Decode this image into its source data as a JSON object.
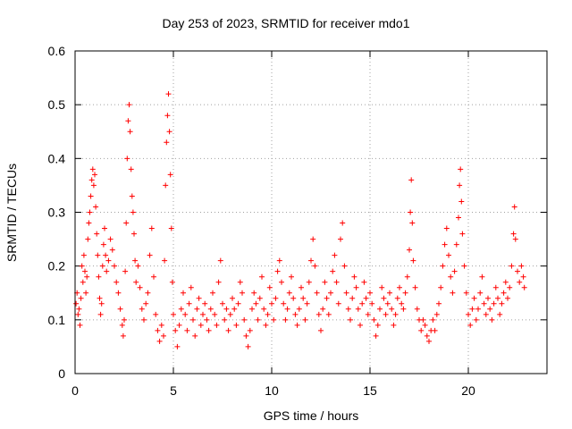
{
  "chart_data": {
    "type": "scatter",
    "title": "Day 253 of 2023, SRMTID for receiver mdo1",
    "xlabel": "GPS time / hours",
    "ylabel": "SRMTID / TECUs",
    "xlim": [
      0,
      24
    ],
    "ylim": [
      0,
      0.6
    ],
    "xticks": [
      0,
      5,
      10,
      15,
      20
    ],
    "xtick_labels": [
      "0",
      "5",
      "10",
      "15",
      "20"
    ],
    "yticks": [
      0,
      0.1,
      0.2,
      0.3,
      0.4,
      0.5,
      0.6
    ],
    "ytick_labels": [
      "0",
      "0.1",
      "0.2",
      "0.3",
      "0.4",
      "0.5",
      "0.6"
    ],
    "grid": true,
    "marker": "+",
    "color": "#ff0000",
    "series": [
      {
        "name": "SRMTID",
        "points": [
          [
            0.05,
            0.13
          ],
          [
            0.1,
            0.15
          ],
          [
            0.15,
            0.11
          ],
          [
            0.2,
            0.12
          ],
          [
            0.25,
            0.09
          ],
          [
            0.3,
            0.14
          ],
          [
            0.35,
            0.2
          ],
          [
            0.4,
            0.17
          ],
          [
            0.45,
            0.22
          ],
          [
            0.5,
            0.19
          ],
          [
            0.55,
            0.15
          ],
          [
            0.6,
            0.18
          ],
          [
            0.65,
            0.25
          ],
          [
            0.7,
            0.28
          ],
          [
            0.75,
            0.3
          ],
          [
            0.8,
            0.33
          ],
          [
            0.85,
            0.36
          ],
          [
            0.9,
            0.38
          ],
          [
            0.95,
            0.35
          ],
          [
            1.0,
            0.37
          ],
          [
            1.05,
            0.31
          ],
          [
            1.1,
            0.26
          ],
          [
            1.15,
            0.22
          ],
          [
            1.2,
            0.18
          ],
          [
            1.25,
            0.14
          ],
          [
            1.3,
            0.11
          ],
          [
            1.35,
            0.13
          ],
          [
            1.4,
            0.2
          ],
          [
            1.45,
            0.24
          ],
          [
            1.5,
            0.27
          ],
          [
            1.55,
            0.22
          ],
          [
            1.6,
            0.19
          ],
          [
            1.7,
            0.21
          ],
          [
            1.8,
            0.25
          ],
          [
            1.9,
            0.23
          ],
          [
            2.0,
            0.2
          ],
          [
            2.1,
            0.17
          ],
          [
            2.2,
            0.15
          ],
          [
            2.3,
            0.12
          ],
          [
            2.4,
            0.09
          ],
          [
            2.45,
            0.07
          ],
          [
            2.5,
            0.1
          ],
          [
            2.55,
            0.19
          ],
          [
            2.6,
            0.28
          ],
          [
            2.65,
            0.4
          ],
          [
            2.7,
            0.47
          ],
          [
            2.75,
            0.5
          ],
          [
            2.8,
            0.45
          ],
          [
            2.85,
            0.38
          ],
          [
            2.9,
            0.33
          ],
          [
            2.95,
            0.3
          ],
          [
            3.0,
            0.26
          ],
          [
            3.05,
            0.21
          ],
          [
            3.1,
            0.17
          ],
          [
            3.2,
            0.2
          ],
          [
            3.3,
            0.16
          ],
          [
            3.4,
            0.12
          ],
          [
            3.5,
            0.1
          ],
          [
            3.6,
            0.13
          ],
          [
            3.7,
            0.15
          ],
          [
            3.8,
            0.22
          ],
          [
            3.9,
            0.27
          ],
          [
            4.0,
            0.18
          ],
          [
            4.1,
            0.11
          ],
          [
            4.2,
            0.08
          ],
          [
            4.3,
            0.06
          ],
          [
            4.4,
            0.09
          ],
          [
            4.5,
            0.07
          ],
          [
            4.55,
            0.21
          ],
          [
            4.6,
            0.35
          ],
          [
            4.65,
            0.43
          ],
          [
            4.7,
            0.48
          ],
          [
            4.75,
            0.52
          ],
          [
            4.8,
            0.45
          ],
          [
            4.85,
            0.37
          ],
          [
            4.9,
            0.27
          ],
          [
            4.95,
            0.17
          ],
          [
            5.0,
            0.11
          ],
          [
            5.1,
            0.08
          ],
          [
            5.2,
            0.05
          ],
          [
            5.3,
            0.09
          ],
          [
            5.4,
            0.12
          ],
          [
            5.5,
            0.15
          ],
          [
            5.6,
            0.11
          ],
          [
            5.7,
            0.08
          ],
          [
            5.8,
            0.13
          ],
          [
            5.9,
            0.16
          ],
          [
            6.0,
            0.1
          ],
          [
            6.1,
            0.07
          ],
          [
            6.2,
            0.12
          ],
          [
            6.3,
            0.14
          ],
          [
            6.4,
            0.09
          ],
          [
            6.5,
            0.11
          ],
          [
            6.6,
            0.13
          ],
          [
            6.7,
            0.1
          ],
          [
            6.8,
            0.08
          ],
          [
            6.9,
            0.12
          ],
          [
            7.0,
            0.15
          ],
          [
            7.1,
            0.11
          ],
          [
            7.2,
            0.09
          ],
          [
            7.3,
            0.17
          ],
          [
            7.4,
            0.21
          ],
          [
            7.5,
            0.13
          ],
          [
            7.6,
            0.1
          ],
          [
            7.7,
            0.12
          ],
          [
            7.8,
            0.08
          ],
          [
            7.9,
            0.11
          ],
          [
            8.0,
            0.14
          ],
          [
            8.1,
            0.12
          ],
          [
            8.2,
            0.09
          ],
          [
            8.3,
            0.13
          ],
          [
            8.4,
            0.17
          ],
          [
            8.5,
            0.15
          ],
          [
            8.6,
            0.1
          ],
          [
            8.7,
            0.07
          ],
          [
            8.8,
            0.05
          ],
          [
            8.9,
            0.08
          ],
          [
            9.0,
            0.12
          ],
          [
            9.1,
            0.15
          ],
          [
            9.2,
            0.13
          ],
          [
            9.3,
            0.1
          ],
          [
            9.4,
            0.14
          ],
          [
            9.5,
            0.18
          ],
          [
            9.6,
            0.12
          ],
          [
            9.7,
            0.09
          ],
          [
            9.8,
            0.11
          ],
          [
            9.9,
            0.16
          ],
          [
            10.0,
            0.13
          ],
          [
            10.1,
            0.1
          ],
          [
            10.2,
            0.14
          ],
          [
            10.3,
            0.19
          ],
          [
            10.4,
            0.21
          ],
          [
            10.5,
            0.17
          ],
          [
            10.6,
            0.13
          ],
          [
            10.7,
            0.1
          ],
          [
            10.8,
            0.12
          ],
          [
            10.9,
            0.15
          ],
          [
            11.0,
            0.18
          ],
          [
            11.1,
            0.14
          ],
          [
            11.2,
            0.11
          ],
          [
            11.3,
            0.09
          ],
          [
            11.4,
            0.12
          ],
          [
            11.5,
            0.16
          ],
          [
            11.6,
            0.14
          ],
          [
            11.7,
            0.1
          ],
          [
            11.8,
            0.13
          ],
          [
            11.9,
            0.17
          ],
          [
            12.0,
            0.21
          ],
          [
            12.1,
            0.25
          ],
          [
            12.2,
            0.2
          ],
          [
            12.3,
            0.15
          ],
          [
            12.4,
            0.11
          ],
          [
            12.5,
            0.08
          ],
          [
            12.6,
            0.12
          ],
          [
            12.7,
            0.17
          ],
          [
            12.8,
            0.14
          ],
          [
            12.9,
            0.11
          ],
          [
            13.0,
            0.15
          ],
          [
            13.1,
            0.19
          ],
          [
            13.2,
            0.22
          ],
          [
            13.3,
            0.17
          ],
          [
            13.4,
            0.13
          ],
          [
            13.5,
            0.25
          ],
          [
            13.6,
            0.28
          ],
          [
            13.7,
            0.2
          ],
          [
            13.8,
            0.15
          ],
          [
            13.9,
            0.12
          ],
          [
            14.0,
            0.1
          ],
          [
            14.1,
            0.14
          ],
          [
            14.2,
            0.18
          ],
          [
            14.3,
            0.16
          ],
          [
            14.4,
            0.12
          ],
          [
            14.5,
            0.09
          ],
          [
            14.6,
            0.13
          ],
          [
            14.7,
            0.17
          ],
          [
            14.8,
            0.14
          ],
          [
            14.9,
            0.11
          ],
          [
            15.0,
            0.15
          ],
          [
            15.1,
            0.13
          ],
          [
            15.2,
            0.1
          ],
          [
            15.3,
            0.07
          ],
          [
            15.4,
            0.09
          ],
          [
            15.5,
            0.12
          ],
          [
            15.6,
            0.16
          ],
          [
            15.7,
            0.14
          ],
          [
            15.8,
            0.11
          ],
          [
            15.9,
            0.13
          ],
          [
            16.0,
            0.15
          ],
          [
            16.1,
            0.12
          ],
          [
            16.2,
            0.09
          ],
          [
            16.3,
            0.11
          ],
          [
            16.4,
            0.14
          ],
          [
            16.5,
            0.16
          ],
          [
            16.6,
            0.13
          ],
          [
            16.7,
            0.12
          ],
          [
            16.8,
            0.15
          ],
          [
            16.9,
            0.18
          ],
          [
            17.0,
            0.23
          ],
          [
            17.05,
            0.3
          ],
          [
            17.1,
            0.36
          ],
          [
            17.15,
            0.28
          ],
          [
            17.2,
            0.21
          ],
          [
            17.3,
            0.16
          ],
          [
            17.4,
            0.12
          ],
          [
            17.5,
            0.1
          ],
          [
            17.6,
            0.08
          ],
          [
            17.7,
            0.1
          ],
          [
            17.8,
            0.09
          ],
          [
            17.9,
            0.07
          ],
          [
            18.0,
            0.06
          ],
          [
            18.1,
            0.08
          ],
          [
            18.2,
            0.1
          ],
          [
            18.3,
            0.08
          ],
          [
            18.4,
            0.11
          ],
          [
            18.5,
            0.13
          ],
          [
            18.6,
            0.16
          ],
          [
            18.7,
            0.2
          ],
          [
            18.8,
            0.24
          ],
          [
            18.9,
            0.27
          ],
          [
            19.0,
            0.22
          ],
          [
            19.1,
            0.18
          ],
          [
            19.2,
            0.15
          ],
          [
            19.3,
            0.19
          ],
          [
            19.4,
            0.24
          ],
          [
            19.5,
            0.29
          ],
          [
            19.55,
            0.35
          ],
          [
            19.6,
            0.38
          ],
          [
            19.65,
            0.32
          ],
          [
            19.7,
            0.26
          ],
          [
            19.8,
            0.2
          ],
          [
            19.9,
            0.15
          ],
          [
            20.0,
            0.11
          ],
          [
            20.1,
            0.09
          ],
          [
            20.2,
            0.12
          ],
          [
            20.3,
            0.14
          ],
          [
            20.4,
            0.1
          ],
          [
            20.5,
            0.12
          ],
          [
            20.6,
            0.15
          ],
          [
            20.7,
            0.18
          ],
          [
            20.8,
            0.13
          ],
          [
            20.9,
            0.11
          ],
          [
            21.0,
            0.14
          ],
          [
            21.1,
            0.12
          ],
          [
            21.2,
            0.1
          ],
          [
            21.3,
            0.13
          ],
          [
            21.4,
            0.16
          ],
          [
            21.5,
            0.14
          ],
          [
            21.6,
            0.11
          ],
          [
            21.7,
            0.13
          ],
          [
            21.8,
            0.15
          ],
          [
            21.9,
            0.17
          ],
          [
            22.0,
            0.14
          ],
          [
            22.1,
            0.16
          ],
          [
            22.2,
            0.2
          ],
          [
            22.3,
            0.26
          ],
          [
            22.35,
            0.31
          ],
          [
            22.4,
            0.25
          ],
          [
            22.5,
            0.19
          ],
          [
            22.6,
            0.17
          ],
          [
            22.7,
            0.2
          ],
          [
            22.8,
            0.18
          ],
          [
            22.85,
            0.16
          ]
        ]
      }
    ]
  }
}
